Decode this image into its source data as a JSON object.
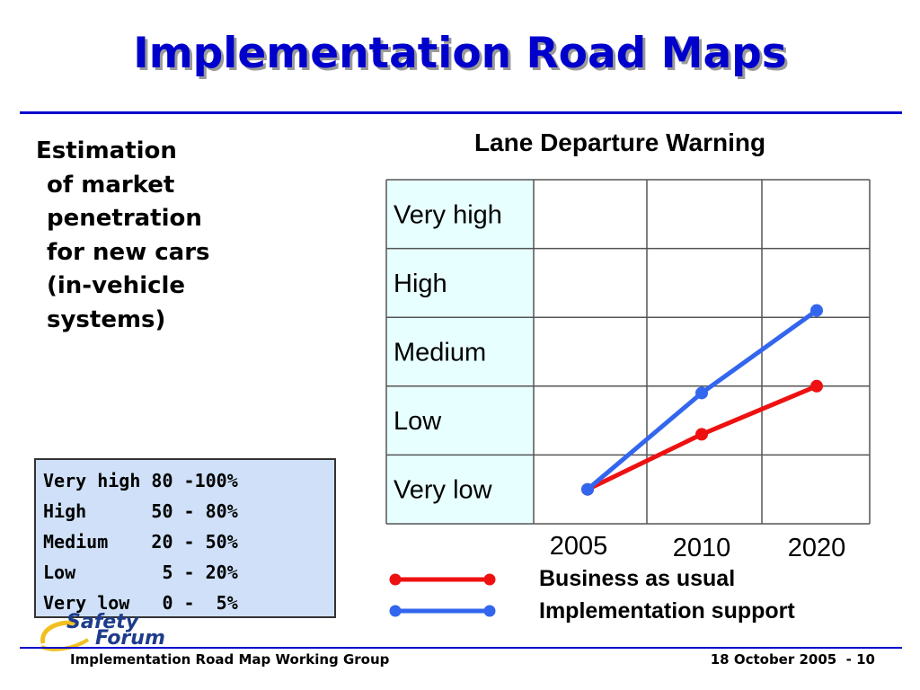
{
  "slide": {
    "title": "Implementation Road Maps",
    "description_lines": [
      "Estimation",
      "of market",
      "penetration",
      "for new cars",
      "(in-vehicle",
      "systems)"
    ],
    "footer_left": "Implementation Road Map Working Group",
    "footer_right": "18 October 2005  - 10",
    "logo_line1": "Safety",
    "logo_line2": "Forum",
    "colors": {
      "title": "#0000cc",
      "rule": "#0000cc",
      "legend_box_bg": "#cfe0f8",
      "row_label_bg": "#e8ffff"
    }
  },
  "scale_legend": {
    "rows": [
      "Very high 80 -100%",
      "High      50 - 80%",
      "Medium    20 - 50%",
      "Low        5 - 20%",
      "Very low   0 -  5%"
    ]
  },
  "chart_data": {
    "type": "line",
    "title": "Lane Departure Warning",
    "categories": [
      "2005",
      "2010",
      "2020"
    ],
    "y_levels": [
      "Very low",
      "Low",
      "Medium",
      "High",
      "Very high"
    ],
    "series": [
      {
        "name": "Business as usual",
        "color": "#ee1111",
        "values": [
          0.5,
          1.3,
          2.0
        ]
      },
      {
        "name": "Implementation support",
        "color": "#3366ee",
        "values": [
          0.5,
          1.9,
          3.1
        ]
      }
    ],
    "grid": true,
    "legend_position": "bottom"
  }
}
